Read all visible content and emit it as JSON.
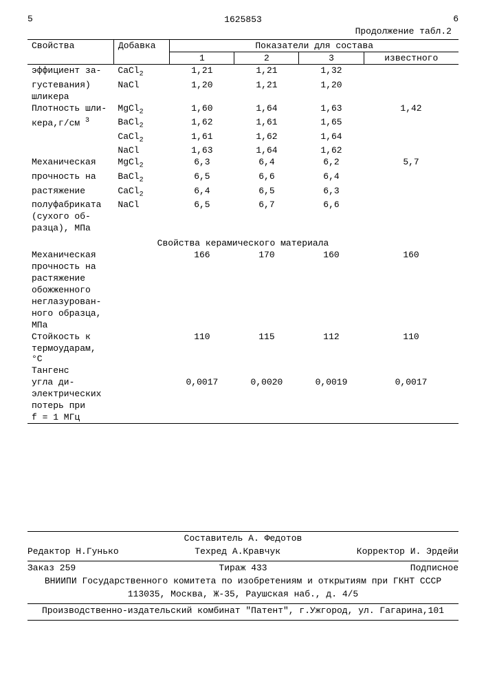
{
  "page_left": "5",
  "doc_number": "1625853",
  "page_right": "6",
  "continuation": "Продолжение табл.2",
  "header": {
    "col1": "Свойства",
    "col2": "Добавка",
    "col3": "Показатели для состава",
    "sub1": "1",
    "sub2": "2",
    "sub3": "3",
    "sub4": "известного"
  },
  "rows": [
    {
      "prop": "эффициент за-",
      "add": "CaCl₂",
      "v1": "1,21",
      "v2": "1,21",
      "v3": "1,32",
      "v4": ""
    },
    {
      "prop": "густевания)",
      "add": "NaCl",
      "v1": "1,20",
      "v2": "1,21",
      "v3": "1,20",
      "v4": ""
    },
    {
      "prop": "шликера",
      "add": "",
      "v1": "",
      "v2": "",
      "v3": "",
      "v4": ""
    },
    {
      "prop": "Плотность шли-",
      "add": "MgCl₂",
      "v1": "1,60",
      "v2": "1,64",
      "v3": "1,63",
      "v4": "1,42"
    },
    {
      "prop": "кера,г/см ³",
      "add": "BaCl₂",
      "v1": "1,62",
      "v2": "1,61",
      "v3": "1,65",
      "v4": ""
    },
    {
      "prop": "",
      "add": "CaCl₂",
      "v1": "1,61",
      "v2": "1,62",
      "v3": "1,64",
      "v4": ""
    },
    {
      "prop": "",
      "add": "NaCl",
      "v1": "1,63",
      "v2": "1,64",
      "v3": "1,62",
      "v4": ""
    },
    {
      "prop": "Механическая",
      "add": "MgCl₂",
      "v1": "6,3",
      "v2": "6,4",
      "v3": "6,2",
      "v4": "5,7"
    },
    {
      "prop": "прочность на",
      "add": "BaCl₂",
      "v1": "6,5",
      "v2": "6,6",
      "v3": "6,4",
      "v4": ""
    },
    {
      "prop": "растяжение",
      "add": "CaCl₂",
      "v1": "6,4",
      "v2": "6,5",
      "v3": "6,3",
      "v4": ""
    },
    {
      "prop": "полуфабриката",
      "add": "NaCl",
      "v1": "6,5",
      "v2": "6,7",
      "v3": "6,6",
      "v4": ""
    },
    {
      "prop": "(сухого об-",
      "add": "",
      "v1": "",
      "v2": "",
      "v3": "",
      "v4": ""
    },
    {
      "prop": "разца), МПа",
      "add": "",
      "v1": "",
      "v2": "",
      "v3": "",
      "v4": ""
    }
  ],
  "section_title": "Свойства керамического материала",
  "rows2": [
    {
      "prop": "Механическая",
      "v1": "166",
      "v2": "170",
      "v3": "160",
      "v4": "160"
    },
    {
      "prop": "прочность на",
      "v1": "",
      "v2": "",
      "v3": "",
      "v4": ""
    },
    {
      "prop": "растяжение",
      "v1": "",
      "v2": "",
      "v3": "",
      "v4": ""
    },
    {
      "prop": "обожженного",
      "v1": "",
      "v2": "",
      "v3": "",
      "v4": ""
    },
    {
      "prop": "неглазурован-",
      "v1": "",
      "v2": "",
      "v3": "",
      "v4": ""
    },
    {
      "prop": "ного образца,",
      "v1": "",
      "v2": "",
      "v3": "",
      "v4": ""
    },
    {
      "prop": "МПа",
      "v1": "",
      "v2": "",
      "v3": "",
      "v4": ""
    },
    {
      "prop": "Стойкость к",
      "v1": "110",
      "v2": "115",
      "v3": "112",
      "v4": "110"
    },
    {
      "prop": "термоударам, °С",
      "v1": "",
      "v2": "",
      "v3": "",
      "v4": ""
    },
    {
      "prop": "Тангенс",
      "v1": "",
      "v2": "",
      "v3": "",
      "v4": ""
    },
    {
      "prop": "угла ди-",
      "v1": "0,0017",
      "v2": "0,0020",
      "v3": "0,0019",
      "v4": "0,0017"
    },
    {
      "prop": "электрических",
      "v1": "",
      "v2": "",
      "v3": "",
      "v4": ""
    },
    {
      "prop": "потерь при",
      "v1": "",
      "v2": "",
      "v3": "",
      "v4": ""
    },
    {
      "prop": "f = 1 МГц",
      "v1": "",
      "v2": "",
      "v3": "",
      "v4": ""
    }
  ],
  "footer": {
    "compiler": "Составитель А. Федотов",
    "editor": "Редактор Н.Гунько",
    "techred": "Техред А.Кравчук",
    "corrector": "Корректор И. Эрдейи",
    "order": "Заказ 259",
    "tirage": "Тираж 433",
    "subscription": "Подписное",
    "line1": "ВНИИПИ Государственного комитета по изобретениям и открытиям при ГКНТ СССР",
    "line2": "113035, Москва, Ж-35, Раушская наб., д. 4/5",
    "line3": "Производственно-издательский комбинат \"Патент\", г.Ужгород, ул. Гагарина,101"
  }
}
